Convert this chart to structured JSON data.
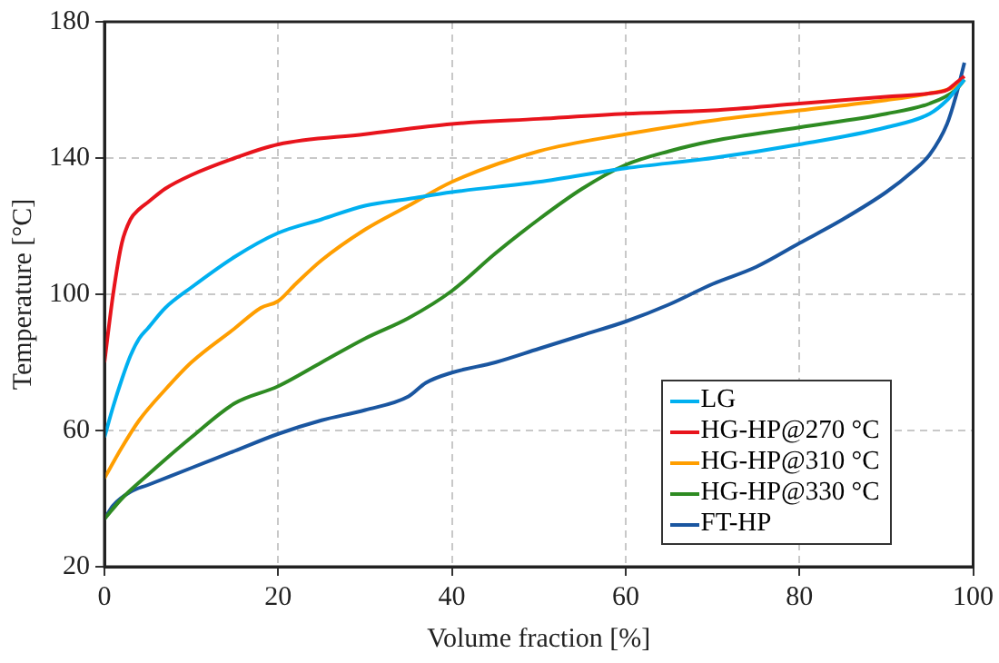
{
  "chart_data": {
    "type": "line",
    "xlabel": "Volume fraction [%]",
    "ylabel": "Temperature [°C]",
    "xlim": [
      0,
      100
    ],
    "xticks": [
      0,
      20,
      40,
      60,
      80,
      100
    ],
    "ylim": [
      20,
      180
    ],
    "yticks": [
      20,
      60,
      100,
      140,
      180
    ],
    "grid": true,
    "legend": "bottom right",
    "marker": "none",
    "line_style": "solid",
    "series": [
      {
        "name": "LG",
        "color": "#00b0f0",
        "x": [
          0,
          1,
          2,
          3,
          4,
          5,
          7,
          10,
          15,
          20,
          25,
          30,
          35,
          40,
          50,
          60,
          70,
          80,
          90,
          95,
          97,
          98,
          99
        ],
        "values": [
          58,
          67,
          75,
          82,
          87,
          90,
          96,
          102,
          111,
          118,
          122,
          126,
          128,
          130,
          133,
          137,
          140,
          144,
          149,
          153,
          157,
          160,
          163
        ]
      },
      {
        "name": "HG-HP@270 °C",
        "color": "#e8141c",
        "x": [
          0,
          1,
          2,
          3,
          4,
          5,
          7,
          10,
          15,
          20,
          30,
          40,
          50,
          60,
          70,
          80,
          90,
          95,
          97,
          98,
          99
        ],
        "values": [
          80,
          100,
          115,
          122,
          125,
          127,
          131,
          135,
          140,
          144,
          147,
          150,
          151.5,
          153,
          154,
          156,
          158,
          159,
          160,
          162,
          164
        ]
      },
      {
        "name": "HG-HP@310 °C",
        "color": "#ff9e00",
        "x": [
          0,
          2,
          4,
          7,
          10,
          15,
          18,
          20,
          22,
          25,
          30,
          35,
          40,
          50,
          60,
          70,
          80,
          90,
          95,
          98,
          99
        ],
        "values": [
          46,
          55,
          63,
          72,
          80,
          90,
          96,
          98,
          103,
          110,
          119,
          126,
          133,
          142,
          147,
          151,
          154,
          157,
          159,
          161,
          163
        ]
      },
      {
        "name": "HG-HP@330 °C",
        "color": "#2e8b22",
        "x": [
          0,
          2,
          5,
          10,
          15,
          20,
          25,
          30,
          35,
          40,
          45,
          50,
          55,
          60,
          65,
          70,
          80,
          90,
          95,
          98,
          99
        ],
        "values": [
          34,
          40,
          47,
          58,
          68,
          73,
          80,
          87,
          93,
          101,
          112,
          122,
          131,
          138,
          142,
          145,
          149,
          153,
          156,
          160,
          163
        ]
      },
      {
        "name": "FT-HP",
        "color": "#1a56a0",
        "x": [
          0,
          1,
          3,
          5,
          10,
          15,
          20,
          25,
          30,
          35,
          37,
          40,
          45,
          50,
          55,
          60,
          65,
          70,
          75,
          80,
          85,
          90,
          93,
          95,
          97,
          98,
          99
        ],
        "values": [
          34,
          38,
          42,
          44,
          49,
          54,
          59,
          63,
          66,
          70,
          74,
          77,
          80,
          84,
          88,
          92,
          97,
          103,
          108,
          115,
          122,
          130,
          136,
          141,
          150,
          158,
          168
        ]
      }
    ]
  }
}
